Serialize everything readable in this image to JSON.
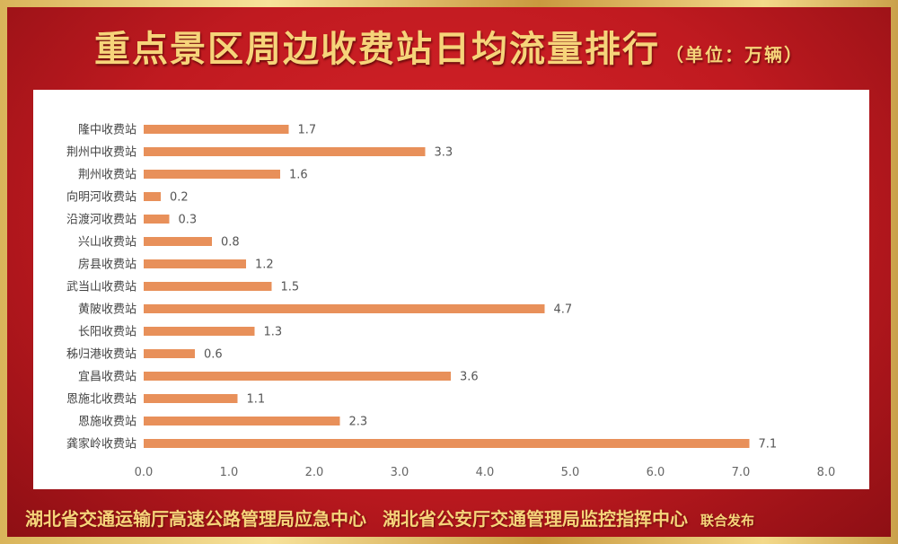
{
  "title": "重点景区周边收费站日均流量排行",
  "unit": "（单位：万辆）",
  "footer": {
    "org1": "湖北省交通运输厅高速公路管理局应急中心",
    "org2": "湖北省公安厅交通管理局监控指挥中心",
    "publish": "联合发布"
  },
  "chart_data": {
    "type": "bar",
    "orientation": "horizontal",
    "categories": [
      "隆中收费站",
      "荆州中收费站",
      "荆州收费站",
      "向明河收费站",
      "沿渡河收费站",
      "兴山收费站",
      "房县收费站",
      "武当山收费站",
      "黄陂收费站",
      "长阳收费站",
      "秭归港收费站",
      "宜昌收费站",
      "恩施北收费站",
      "恩施收费站",
      "龚家岭收费站"
    ],
    "values": [
      1.7,
      3.3,
      1.6,
      0.2,
      0.3,
      0.8,
      1.2,
      1.5,
      4.7,
      1.3,
      0.6,
      3.6,
      1.1,
      2.3,
      7.1
    ],
    "value_labels": [
      "1.7",
      "3.3",
      "1.6",
      "0.2",
      "0.3",
      "0.8",
      "1.2",
      "1.5",
      "4.7",
      "1.3",
      "0.6",
      "3.6",
      "1.1",
      "2.3",
      "7.1"
    ],
    "xlim": [
      0,
      8
    ],
    "xticks": [
      "0.0",
      "1.0",
      "2.0",
      "3.0",
      "4.0",
      "5.0",
      "6.0",
      "7.0",
      "8.0"
    ],
    "grid": false,
    "bar_color": "#e8905a"
  }
}
